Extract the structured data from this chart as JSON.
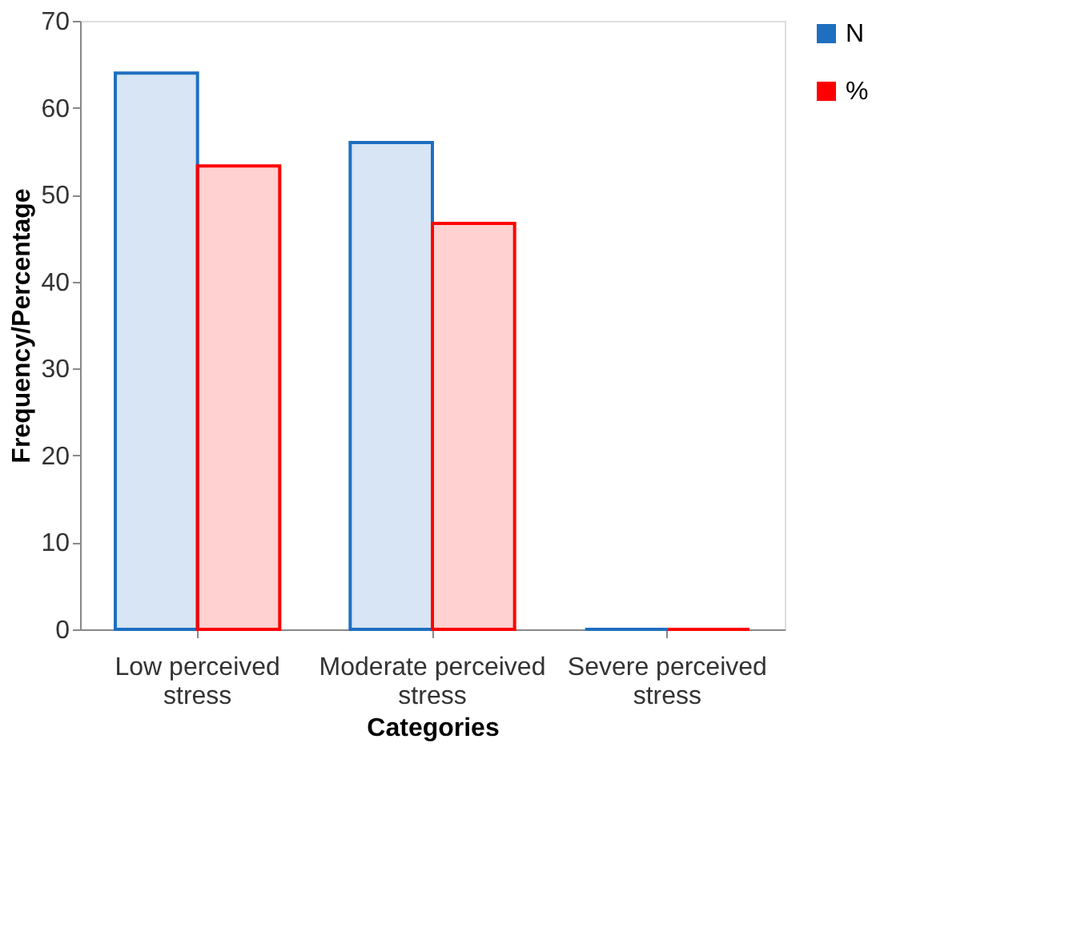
{
  "chart_data": {
    "type": "bar",
    "xlabel": "Categories",
    "ylabel": "Frequency/Percentage",
    "categories": [
      "Low perceived stress",
      "Moderate perceived stress",
      "Severe perceived stress"
    ],
    "series": [
      {
        "name": "N",
        "color": "#1f6fc0",
        "values": [
          64,
          56,
          0
        ]
      },
      {
        "name": "%",
        "color": "#ff0000",
        "values": [
          53.3,
          46.7,
          0
        ]
      }
    ],
    "ylim": [
      0,
      70
    ],
    "yticks": [
      0,
      10,
      20,
      30,
      40,
      50,
      60,
      70
    ],
    "grid": false,
    "legend": "right"
  }
}
